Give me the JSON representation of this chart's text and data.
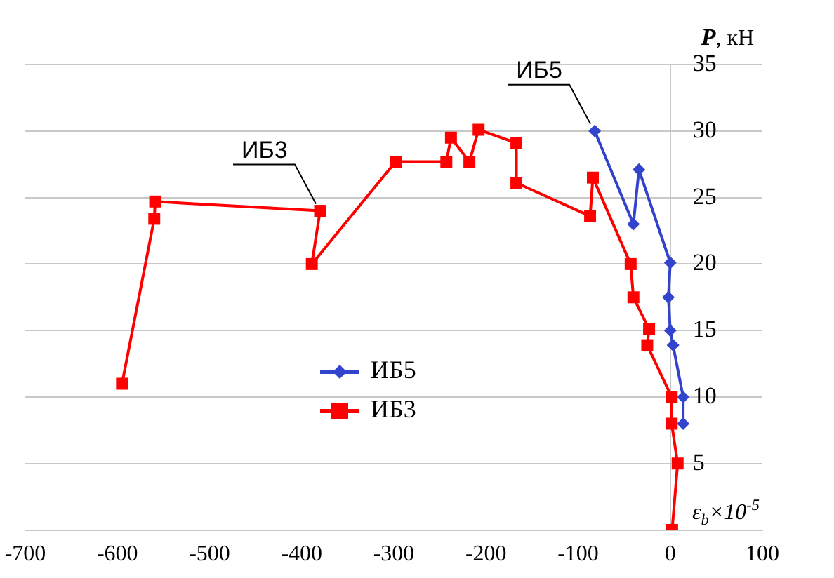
{
  "chart_data": {
    "type": "line",
    "xlabel": "ε$_{b}$×10$^{-5}$",
    "ylabel": "P, кН",
    "xlim": [
      -700,
      100
    ],
    "xticks": [
      -700,
      -600,
      -500,
      -400,
      -300,
      -200,
      -100,
      0,
      100
    ],
    "ylim": [
      0,
      35
    ],
    "yticks": [
      5,
      10,
      15,
      20,
      25,
      30,
      35
    ],
    "grid": "y",
    "legend": "center",
    "series": [
      {
        "name": "ИБ5",
        "color": "#3344cc",
        "marker": "diamond",
        "x": [
          -82,
          -40,
          -34,
          0,
          -2,
          0,
          3,
          14,
          14
        ],
        "values": [
          30,
          23,
          27.1,
          20.1,
          17.5,
          15,
          13.9,
          10,
          8
        ]
      },
      {
        "name": "ИБ3",
        "color": "#ff0000",
        "marker": "square",
        "x": [
          -595,
          -560,
          -559,
          -380,
          -389,
          -298,
          -243,
          -238,
          -218,
          -208,
          -167,
          -167,
          -87,
          -84,
          -43,
          -40,
          -23,
          -25,
          1.5,
          1.5,
          8,
          2
        ],
        "values": [
          11,
          23.4,
          24.7,
          24,
          20,
          27.7,
          27.7,
          29.5,
          27.7,
          30.1,
          29.1,
          26.1,
          23.6,
          26.5,
          20,
          17.5,
          15.1,
          13.9,
          10,
          8,
          5,
          0
        ]
      }
    ],
    "annotations": [
      {
        "text": "ИБ3",
        "x": -380,
        "y": 24
      },
      {
        "text": "ИБ5",
        "x": -82,
        "y": 30
      }
    ]
  }
}
